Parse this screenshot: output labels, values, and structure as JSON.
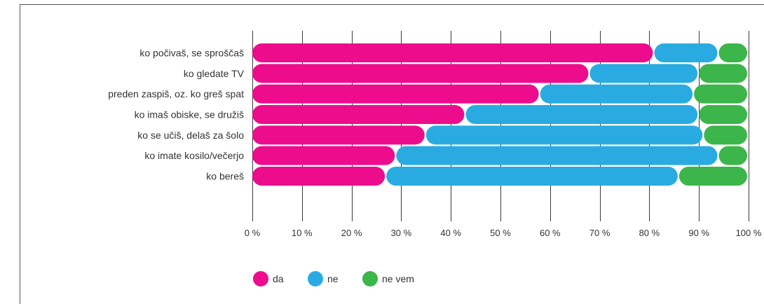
{
  "chart_data": {
    "type": "bar",
    "orientation": "horizontal",
    "stacked": true,
    "categories": [
      "ko počivaš, se sproščaš",
      "ko gledate TV",
      "preden zaspiš, oz. ko greš spat",
      "ko imaš obiske, se družiš",
      "ko se učiš, delaš za šolo",
      "ko imate kosilo/večerjo",
      "ko bereš"
    ],
    "series": [
      {
        "name": "da",
        "color": "#ec0c8c",
        "values": [
          81,
          68,
          58,
          43,
          35,
          29,
          27
        ]
      },
      {
        "name": "ne",
        "color": "#29abe2",
        "values": [
          13,
          22,
          31,
          47,
          56,
          65,
          59
        ]
      },
      {
        "name": "ne vem",
        "color": "#3cb54a",
        "values": [
          6,
          10,
          11,
          10,
          9,
          6,
          14
        ]
      }
    ],
    "xlim": [
      0,
      100
    ],
    "x_ticks": [
      "0 %",
      "10 %",
      "20 %",
      "30 %",
      "40 %",
      "50 %",
      "60 %",
      "70 %",
      "80 %",
      "90 %",
      "100 %"
    ],
    "grid": "vertical",
    "legend_position": "bottom"
  }
}
